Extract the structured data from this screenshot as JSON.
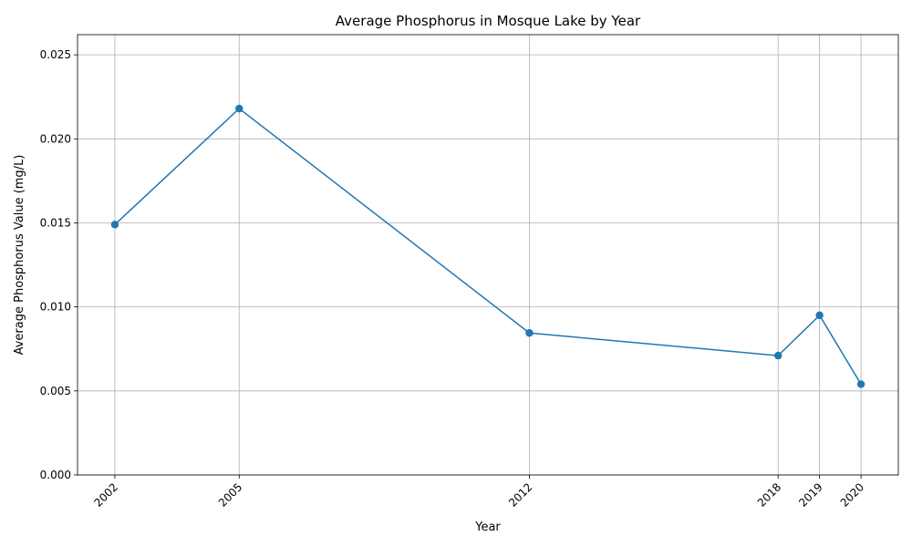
{
  "chart_data": {
    "type": "line",
    "title": "Average Phosphorus in Mosque Lake by Year",
    "xlabel": "Year",
    "ylabel": "Average Phosphorus Value (mg/L)",
    "x": [
      2002,
      2005,
      2012,
      2018,
      2019,
      2020
    ],
    "x_tick_labels": [
      "2002",
      "2005",
      "2012",
      "2018",
      "2019",
      "2020"
    ],
    "xlim": [
      2001.1,
      2020.9
    ],
    "ylim": [
      0,
      0.0262
    ],
    "y_ticks": [
      0,
      0.005,
      0.01,
      0.015,
      0.02,
      0.025
    ],
    "y_tick_labels": [
      "0.000",
      "0.005",
      "0.010",
      "0.015",
      "0.020",
      "0.025"
    ],
    "series": [
      {
        "values": [
          0.0149,
          0.0218,
          0.00845,
          0.0071,
          0.0095,
          0.0054
        ],
        "color": "#1f77b4",
        "marker": "circle"
      }
    ],
    "grid": true,
    "legend": "none"
  }
}
